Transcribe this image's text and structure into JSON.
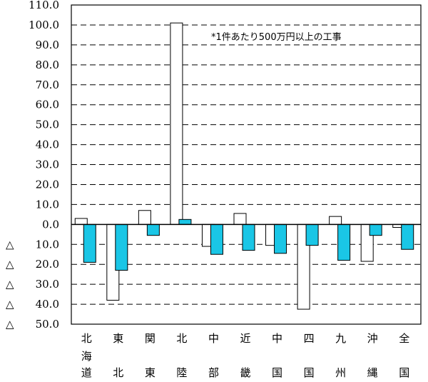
{
  "chart_data": {
    "type": "bar",
    "title": "",
    "xlabel": "",
    "ylabel": "",
    "annotation": "*1件あたり500万円以上の工事",
    "ylim": [
      -50,
      110
    ],
    "yticks": [
      110,
      100,
      90,
      80,
      70,
      60,
      50,
      40,
      30,
      20,
      10,
      0,
      -10,
      -20,
      -30,
      -40,
      -50
    ],
    "ytick_labels": [
      "110.0",
      "100.0",
      "90.0",
      "80.0",
      "70.0",
      "60.0",
      "50.0",
      "40.0",
      "30.0",
      "20.0",
      "10.0",
      "0.0",
      "△ 10.0",
      "△ 20.0",
      "△ 30.0",
      "△ 40.0",
      "△ 50.0"
    ],
    "categories": [
      "北海道",
      "東北",
      "関東",
      "北陸",
      "中部",
      "近畿",
      "中国",
      "四国",
      "九州",
      "沖縄",
      "全国"
    ],
    "category_labels": [
      [
        "北",
        "海",
        "道"
      ],
      [
        "東",
        "",
        "北"
      ],
      [
        "関",
        "",
        "東"
      ],
      [
        "北",
        "",
        "陸"
      ],
      [
        "中",
        "",
        "部"
      ],
      [
        "近",
        "",
        "畿"
      ],
      [
        "中",
        "",
        "国"
      ],
      [
        "四",
        "",
        "国"
      ],
      [
        "九",
        "",
        "州"
      ],
      [
        "沖",
        "",
        "縄"
      ],
      [
        "全",
        "",
        "国"
      ]
    ],
    "grid": true,
    "series": [
      {
        "values": [
          3.0,
          -38.0,
          7.0,
          101.0,
          -11.0,
          5.5,
          -10.5,
          -42.5,
          4.0,
          -18.5,
          -1.5
        ],
        "color": "#ffffff"
      },
      {
        "values": [
          -19.0,
          -23.0,
          -5.5,
          2.5,
          -15.0,
          -13.0,
          -14.5,
          -10.5,
          -18.0,
          -5.5,
          -12.5
        ],
        "color": "#1ac6e6"
      }
    ]
  }
}
